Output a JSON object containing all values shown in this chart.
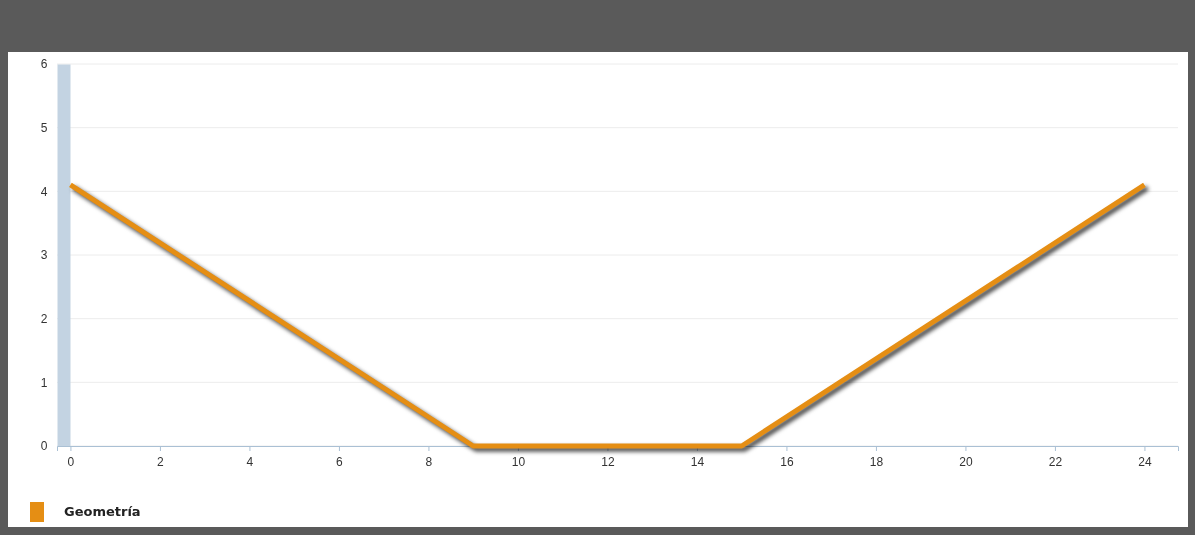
{
  "chart_data": {
    "type": "line",
    "x": [
      0,
      9,
      15,
      24
    ],
    "series": [
      {
        "name": "Geometría",
        "color": "#e58e14",
        "values": [
          4.1,
          0,
          0,
          4.1
        ]
      }
    ],
    "xlim": [
      -0.3,
      24.75
    ],
    "xticks": [
      0,
      2,
      4,
      6,
      8,
      10,
      12,
      14,
      16,
      18,
      20,
      22,
      24
    ],
    "ylim": [
      0,
      6
    ],
    "yticks": [
      0,
      1,
      2,
      3,
      4,
      5,
      6
    ],
    "grid": "y",
    "legend": "bottom left",
    "marker": "none",
    "line_style": "solid"
  }
}
